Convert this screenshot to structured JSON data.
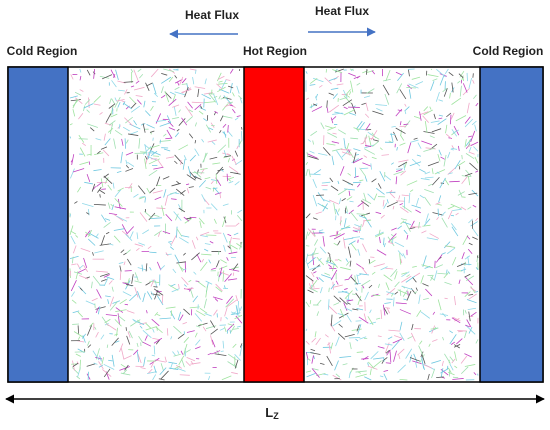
{
  "labels": {
    "heat_flux_left": "Heat Flux",
    "heat_flux_right": "Heat Flux",
    "cold_left": "Cold Region",
    "hot": "Hot Region",
    "cold_right": "Cold Region",
    "length": {
      "main": "L",
      "sub": "Z"
    }
  }
}
